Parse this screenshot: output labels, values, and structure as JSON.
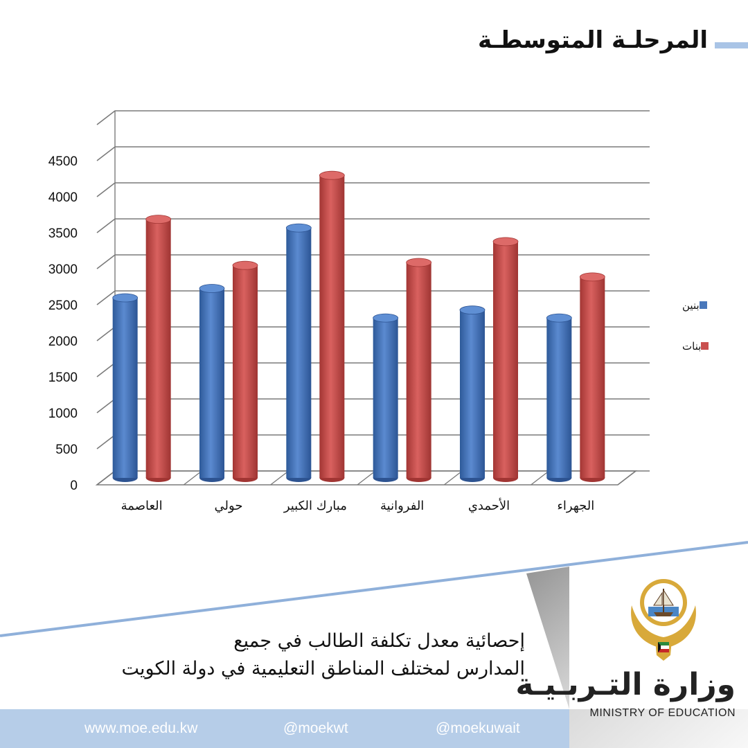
{
  "header": {
    "title": "المرحلـة المتوسطـة"
  },
  "chart_data": {
    "type": "bar",
    "categories": [
      "العاصمة",
      "حولي",
      "مبارك الكبير",
      "الفروانية",
      "الأحمدي",
      "الجهراء"
    ],
    "series": [
      {
        "name": "بنين",
        "values": [
          2500,
          2630,
          3470,
          2220,
          2330,
          2220
        ]
      },
      {
        "name": "بنات",
        "values": [
          3590,
          2950,
          4200,
          2990,
          3280,
          2790
        ]
      }
    ],
    "yticks": [
      "0",
      "500",
      "1000",
      "1500",
      "2000",
      "2500",
      "3000",
      "3500",
      "4000",
      "4500"
    ],
    "ylim": [
      0,
      5000
    ],
    "grid": true,
    "legend_position": "right"
  },
  "legend": {
    "items": [
      {
        "label": "بنين"
      },
      {
        "label": "بنات"
      }
    ]
  },
  "colors": {
    "boys": "#4a78bb",
    "girls": "#c9504f",
    "grid": "#7a7a7a",
    "accent": "#a9c4e6",
    "footer": "#b6cde8"
  },
  "subtitle": {
    "line1": "إحصائية معدل تكلفة الطالب في جميع",
    "line2": "المدارس لمختلف المناطق التعليمية في دولة الكويت"
  },
  "logo": {
    "arabic": "وزارة التـربـيـة",
    "english": "MINISTRY OF EDUCATION",
    "emblem_icon": "kuwait-emblem-icon"
  },
  "footer": {
    "website": "www.moe.edu.kw",
    "instagram": "@moekwt",
    "twitter": "@moekuwait",
    "icons": [
      "globe-icon",
      "instagram-icon",
      "twitter-icon"
    ]
  }
}
